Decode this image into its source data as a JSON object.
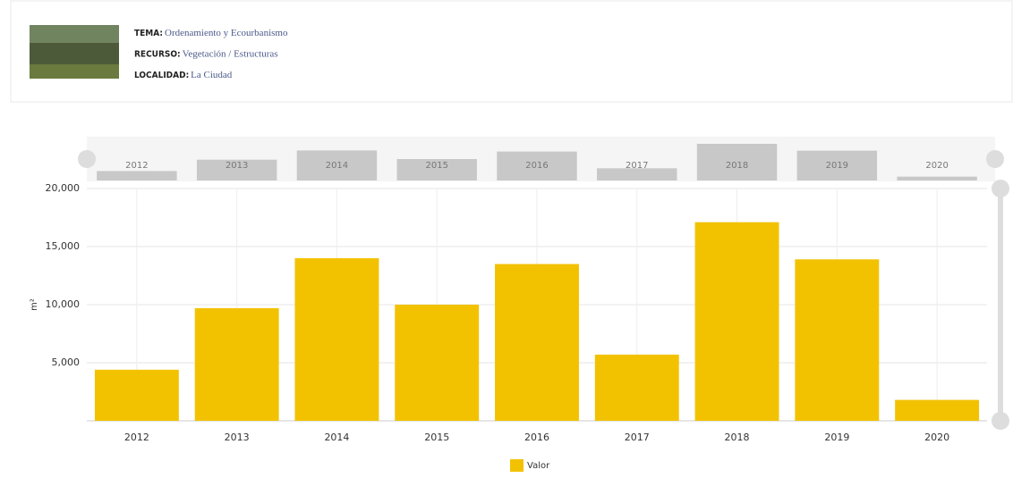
{
  "header": {
    "items": [
      {
        "label": "TEMA:",
        "value": "Ordenamiento y Ecourbanismo"
      },
      {
        "label": "RECURSO:",
        "value": "Vegetación / Estructuras"
      },
      {
        "label": "LOCALIDAD:",
        "value": "La Ciudad"
      }
    ]
  },
  "chart_data": {
    "type": "bar",
    "ylabel": "m²",
    "categories": [
      "2012",
      "2013",
      "2014",
      "2015",
      "2016",
      "2017",
      "2018",
      "2019",
      "2020"
    ],
    "series": [
      {
        "name": "Valor",
        "color": "#f2c200",
        "values": [
          4400,
          9700,
          14000,
          10000,
          13500,
          5700,
          17100,
          13900,
          1800
        ]
      }
    ],
    "ylim": [
      0,
      20000
    ],
    "yticks": [
      {
        "value": 5000,
        "label": "5,000"
      },
      {
        "value": 10000,
        "label": "10,000"
      },
      {
        "value": 15000,
        "label": "15,000"
      },
      {
        "value": 20000,
        "label": "20,000"
      }
    ],
    "grid": true,
    "legend": "bottom"
  }
}
